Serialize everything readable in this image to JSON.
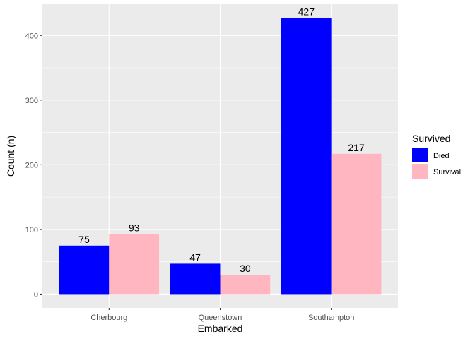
{
  "chart_data": {
    "type": "bar",
    "categories": [
      "Cherbourg",
      "Queenstown",
      "Southampton"
    ],
    "series": [
      {
        "name": "Died",
        "values": [
          75,
          47,
          427
        ],
        "color": "#0000FF"
      },
      {
        "name": "Survival",
        "values": [
          93,
          30,
          217
        ],
        "color": "#FFB6C1"
      }
    ],
    "xlabel": "Embarked",
    "ylabel": "Count (n)",
    "ylim": [
      -21.35,
      448.35
    ],
    "yticks": [
      0,
      100,
      200,
      300,
      400
    ],
    "grid": true,
    "panel_background": "#EBEBEB",
    "legend": {
      "title": "Survived",
      "position": "right"
    }
  }
}
